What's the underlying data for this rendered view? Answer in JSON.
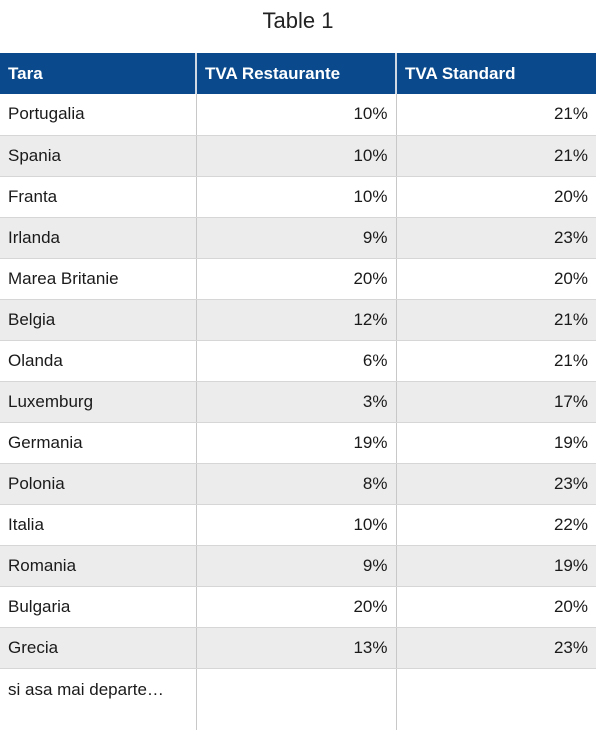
{
  "title": "Table 1",
  "headers": [
    "Tara",
    "TVA Restaurante",
    "TVA Standard"
  ],
  "rows": [
    {
      "country": "Portugalia",
      "restaurant": "10%",
      "standard": "21%"
    },
    {
      "country": "Spania",
      "restaurant": "10%",
      "standard": "21%"
    },
    {
      "country": "Franta",
      "restaurant": "10%",
      "standard": "20%"
    },
    {
      "country": "Irlanda",
      "restaurant": "9%",
      "standard": "23%"
    },
    {
      "country": "Marea Britanie",
      "restaurant": "20%",
      "standard": "20%"
    },
    {
      "country": "Belgia",
      "restaurant": "12%",
      "standard": "21%"
    },
    {
      "country": "Olanda",
      "restaurant": "6%",
      "standard": "21%"
    },
    {
      "country": "Luxemburg",
      "restaurant": "3%",
      "standard": "17%"
    },
    {
      "country": "Germania",
      "restaurant": "19%",
      "standard": "19%"
    },
    {
      "country": "Polonia",
      "restaurant": "8%",
      "standard": "23%"
    },
    {
      "country": "Italia",
      "restaurant": "10%",
      "standard": "22%"
    },
    {
      "country": "Romania",
      "restaurant": "9%",
      "standard": "19%"
    },
    {
      "country": "Bulgaria",
      "restaurant": "20%",
      "standard": "20%"
    },
    {
      "country": "Grecia",
      "restaurant": "13%",
      "standard": "23%"
    }
  ],
  "footer_note": "si asa mai departe…",
  "colors": {
    "header_background": "#0a4a8c",
    "header_text": "#ffffff",
    "alt_row_background": "#ececec"
  }
}
